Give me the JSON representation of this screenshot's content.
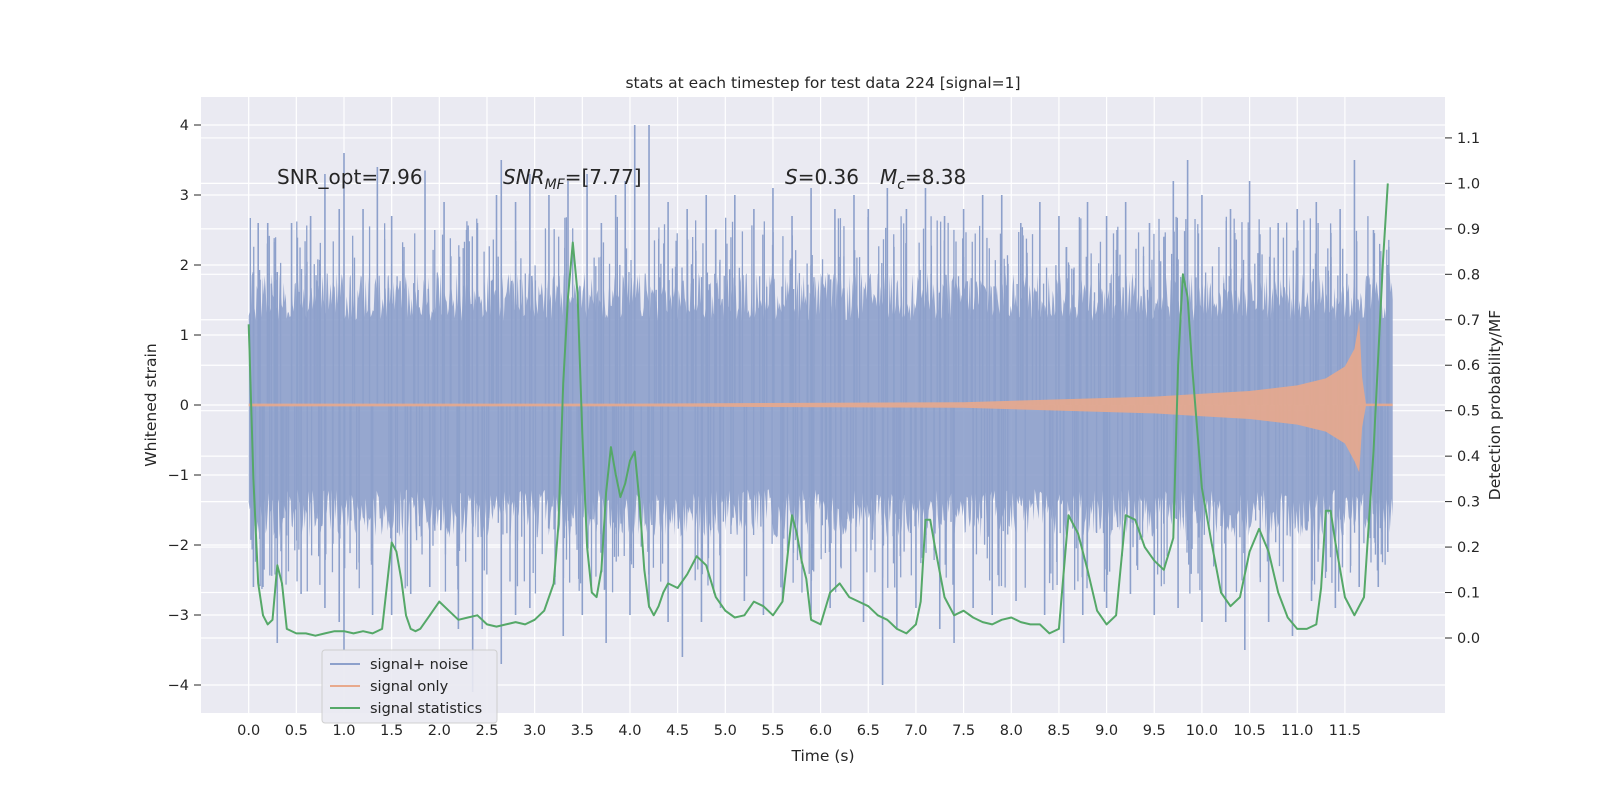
{
  "chart_data": {
    "type": "line",
    "title": "stats at each timestep for test data 224 [signal=1]",
    "xlabel": "Time (s)",
    "ylabel": "Whitened strain",
    "y2label": "Detection probability/MF",
    "xlim": [
      -0.5,
      12.55
    ],
    "ylim": [
      -4.4,
      4.4
    ],
    "y2lim": [
      -0.165,
      1.19
    ],
    "grid": true,
    "xticks": [
      "0.0",
      "0.5",
      "1.0",
      "1.5",
      "2.0",
      "2.5",
      "3.0",
      "3.5",
      "4.0",
      "4.5",
      "5.0",
      "5.5",
      "6.0",
      "6.5",
      "7.0",
      "7.5",
      "8.0",
      "8.5",
      "9.0",
      "9.5",
      "10.0",
      "10.5",
      "11.0",
      "11.5"
    ],
    "yticks": [
      "4",
      "3",
      "2",
      "1",
      "0",
      "−1",
      "−2",
      "−3",
      "−4"
    ],
    "y2ticks": [
      "1.1",
      "1.0",
      "0.9",
      "0.8",
      "0.7",
      "0.6",
      "0.5",
      "0.4",
      "0.3",
      "0.2",
      "0.1",
      "0.0"
    ],
    "annotations": {
      "snr_opt": "SNR_opt=7.96",
      "snr_mf_main": "SNR",
      "snr_mf_sub": "MF",
      "snr_mf_rest": "=[7.77]",
      "s_main": "S",
      "s_rest": "=0.36",
      "mc_main": "M",
      "mc_sub": "c",
      "mc_rest": "=8.38"
    },
    "legend": {
      "placement": "lower-left",
      "entries": [
        "signal+ noise",
        "signal only",
        "signal statistics"
      ]
    },
    "colors": {
      "noise": "#8da0cb",
      "signal": "#e8a98c",
      "stat": "#55a868",
      "background": "#eaeaf2",
      "grid": "#ffffff"
    },
    "series": [
      {
        "name": "signal+ noise",
        "description_range": [
          0.0,
          12.0
        ],
        "band_1sigma": 1.0,
        "peaks_up": [
          [
            0.05,
            1.9
          ],
          [
            0.1,
            2.6
          ],
          [
            0.2,
            2.6
          ],
          [
            0.3,
            1.9
          ],
          [
            0.45,
            2.6
          ],
          [
            0.65,
            2.7
          ],
          [
            0.8,
            3.3
          ],
          [
            0.95,
            2.8
          ],
          [
            1.0,
            3.6
          ],
          [
            1.2,
            2.8
          ],
          [
            1.35,
            3.4
          ],
          [
            1.5,
            2.7
          ],
          [
            1.85,
            3.35
          ],
          [
            2.05,
            2.9
          ],
          [
            2.4,
            2.6
          ],
          [
            2.6,
            3.0
          ],
          [
            2.65,
            3.5
          ],
          [
            2.8,
            2.9
          ],
          [
            2.95,
            3.3
          ],
          [
            3.15,
            3.0
          ],
          [
            3.35,
            3.2
          ],
          [
            3.55,
            3.3
          ],
          [
            3.7,
            2.6
          ],
          [
            3.85,
            3.0
          ],
          [
            3.95,
            3.2
          ],
          [
            4.05,
            4.0
          ],
          [
            4.2,
            4.0
          ],
          [
            4.4,
            2.9
          ],
          [
            4.6,
            2.8
          ],
          [
            4.8,
            3.0
          ],
          [
            5.1,
            3.0
          ],
          [
            5.3,
            2.8
          ],
          [
            5.5,
            3.1
          ],
          [
            5.7,
            2.7
          ],
          [
            5.9,
            3.1
          ],
          [
            6.15,
            2.8
          ],
          [
            6.35,
            3.0
          ],
          [
            6.5,
            2.8
          ],
          [
            6.7,
            3.1
          ],
          [
            6.9,
            2.8
          ],
          [
            7.1,
            3.1
          ],
          [
            7.3,
            2.7
          ],
          [
            7.5,
            2.8
          ],
          [
            7.7,
            3.0
          ],
          [
            7.9,
            3.0
          ],
          [
            8.1,
            2.6
          ],
          [
            8.3,
            2.9
          ],
          [
            8.5,
            2.7
          ],
          [
            8.8,
            2.9
          ],
          [
            9.0,
            2.7
          ],
          [
            9.2,
            2.9
          ],
          [
            9.45,
            2.6
          ],
          [
            9.7,
            3.2
          ],
          [
            9.85,
            3.5
          ],
          [
            10.0,
            3.0
          ],
          [
            10.3,
            2.8
          ],
          [
            10.5,
            3.2
          ],
          [
            10.8,
            2.6
          ],
          [
            11.0,
            2.8
          ],
          [
            11.2,
            2.9
          ],
          [
            11.45,
            2.8
          ],
          [
            11.6,
            3.5
          ],
          [
            11.8,
            2.5
          ],
          [
            11.95,
            2.0
          ]
        ],
        "peaks_down": [
          [
            0.05,
            -2.6
          ],
          [
            0.15,
            -2.6
          ],
          [
            0.3,
            -3.4
          ],
          [
            0.55,
            -2.7
          ],
          [
            0.8,
            -2.9
          ],
          [
            0.95,
            -3.1
          ],
          [
            1.0,
            -3.5
          ],
          [
            1.3,
            -3.0
          ],
          [
            1.5,
            -3.0
          ],
          [
            1.7,
            -2.7
          ],
          [
            1.9,
            -2.6
          ],
          [
            2.2,
            -3.2
          ],
          [
            2.35,
            -4.1
          ],
          [
            2.45,
            -3.2
          ],
          [
            2.65,
            -3.7
          ],
          [
            2.8,
            -3.0
          ],
          [
            2.95,
            -2.9
          ],
          [
            3.3,
            -3.3
          ],
          [
            3.5,
            -3.0
          ],
          [
            3.75,
            -3.4
          ],
          [
            4.0,
            -3.0
          ],
          [
            4.2,
            -2.9
          ],
          [
            4.4,
            -3.1
          ],
          [
            4.55,
            -3.6
          ],
          [
            4.75,
            -3.1
          ],
          [
            4.95,
            -2.9
          ],
          [
            5.2,
            -2.8
          ],
          [
            5.4,
            -3.0
          ],
          [
            5.6,
            -2.8
          ],
          [
            5.9,
            -3.0
          ],
          [
            6.1,
            -2.9
          ],
          [
            6.45,
            -3.1
          ],
          [
            6.65,
            -4.0
          ],
          [
            6.8,
            -3.2
          ],
          [
            7.0,
            -2.9
          ],
          [
            7.25,
            -3.2
          ],
          [
            7.4,
            -3.4
          ],
          [
            7.6,
            -2.9
          ],
          [
            7.8,
            -3.0
          ],
          [
            8.05,
            -2.8
          ],
          [
            8.35,
            -3.0
          ],
          [
            8.55,
            -3.4
          ],
          [
            8.75,
            -3.0
          ],
          [
            9.0,
            -2.9
          ],
          [
            9.25,
            -2.7
          ],
          [
            9.5,
            -3.0
          ],
          [
            9.75,
            -2.9
          ],
          [
            10.0,
            -3.1
          ],
          [
            10.25,
            -3.1
          ],
          [
            10.45,
            -3.5
          ],
          [
            10.7,
            -3.1
          ],
          [
            10.95,
            -3.3
          ],
          [
            11.15,
            -2.8
          ],
          [
            11.4,
            -2.9
          ],
          [
            11.65,
            -2.6
          ],
          [
            11.85,
            -2.6
          ],
          [
            11.95,
            -2.1
          ]
        ]
      },
      {
        "name": "signal only",
        "chirp_points": [
          [
            0.0,
            0.02
          ],
          [
            4.0,
            0.02
          ],
          [
            7.5,
            0.04
          ],
          [
            8.5,
            0.08
          ],
          [
            9.5,
            0.12
          ],
          [
            10.0,
            0.16
          ],
          [
            10.5,
            0.2
          ],
          [
            11.0,
            0.28
          ],
          [
            11.3,
            0.38
          ],
          [
            11.5,
            0.55
          ],
          [
            11.6,
            0.8
          ],
          [
            11.65,
            1.2
          ],
          [
            11.68,
            0.4
          ],
          [
            11.72,
            0.02
          ],
          [
            12.0,
            0.02
          ]
        ]
      },
      {
        "name": "signal statistics",
        "x": [
          0.0,
          0.05,
          0.1,
          0.15,
          0.2,
          0.25,
          0.3,
          0.35,
          0.4,
          0.5,
          0.6,
          0.7,
          0.8,
          0.9,
          1.0,
          1.1,
          1.2,
          1.3,
          1.4,
          1.5,
          1.55,
          1.6,
          1.65,
          1.7,
          1.75,
          1.8,
          1.9,
          2.0,
          2.1,
          2.2,
          2.3,
          2.4,
          2.5,
          2.6,
          2.7,
          2.8,
          2.9,
          3.0,
          3.1,
          3.2,
          3.25,
          3.3,
          3.35,
          3.4,
          3.45,
          3.5,
          3.55,
          3.6,
          3.65,
          3.7,
          3.75,
          3.8,
          3.85,
          3.9,
          3.95,
          4.0,
          4.05,
          4.1,
          4.15,
          4.2,
          4.25,
          4.3,
          4.35,
          4.4,
          4.5,
          4.6,
          4.7,
          4.8,
          4.9,
          5.0,
          5.1,
          5.2,
          5.3,
          5.4,
          5.5,
          5.6,
          5.7,
          5.75,
          5.8,
          5.85,
          5.9,
          6.0,
          6.1,
          6.2,
          6.3,
          6.4,
          6.5,
          6.6,
          6.7,
          6.8,
          6.9,
          7.0,
          7.05,
          7.1,
          7.15,
          7.2,
          7.3,
          7.4,
          7.5,
          7.6,
          7.7,
          7.8,
          7.9,
          8.0,
          8.1,
          8.2,
          8.3,
          8.4,
          8.5,
          8.6,
          8.7,
          8.8,
          8.9,
          9.0,
          9.1,
          9.2,
          9.3,
          9.4,
          9.5,
          9.6,
          9.7,
          9.75,
          9.8,
          9.85,
          9.9,
          10.0,
          10.1,
          10.2,
          10.3,
          10.4,
          10.5,
          10.6,
          10.7,
          10.8,
          10.9,
          11.0,
          11.1,
          11.2,
          11.25,
          11.3,
          11.35,
          11.4,
          11.5,
          11.6,
          11.7,
          11.8,
          11.9,
          11.95
        ],
        "values": [
          0.69,
          0.35,
          0.12,
          0.05,
          0.03,
          0.04,
          0.16,
          0.12,
          0.02,
          0.01,
          0.01,
          0.005,
          0.01,
          0.015,
          0.015,
          0.01,
          0.015,
          0.01,
          0.02,
          0.21,
          0.19,
          0.13,
          0.05,
          0.02,
          0.015,
          0.02,
          0.05,
          0.08,
          0.06,
          0.04,
          0.045,
          0.05,
          0.03,
          0.025,
          0.03,
          0.035,
          0.03,
          0.04,
          0.06,
          0.12,
          0.25,
          0.56,
          0.75,
          0.87,
          0.76,
          0.45,
          0.2,
          0.1,
          0.09,
          0.15,
          0.32,
          0.42,
          0.36,
          0.31,
          0.34,
          0.39,
          0.41,
          0.3,
          0.15,
          0.07,
          0.05,
          0.07,
          0.1,
          0.12,
          0.11,
          0.14,
          0.18,
          0.16,
          0.09,
          0.06,
          0.045,
          0.05,
          0.08,
          0.07,
          0.05,
          0.08,
          0.27,
          0.23,
          0.17,
          0.13,
          0.04,
          0.03,
          0.1,
          0.12,
          0.09,
          0.08,
          0.07,
          0.05,
          0.04,
          0.02,
          0.01,
          0.03,
          0.08,
          0.26,
          0.26,
          0.2,
          0.09,
          0.05,
          0.06,
          0.045,
          0.035,
          0.03,
          0.04,
          0.045,
          0.035,
          0.03,
          0.03,
          0.01,
          0.02,
          0.27,
          0.23,
          0.15,
          0.06,
          0.03,
          0.05,
          0.27,
          0.26,
          0.2,
          0.17,
          0.15,
          0.22,
          0.6,
          0.8,
          0.75,
          0.59,
          0.33,
          0.21,
          0.1,
          0.07,
          0.09,
          0.19,
          0.24,
          0.19,
          0.1,
          0.045,
          0.02,
          0.02,
          0.03,
          0.11,
          0.28,
          0.28,
          0.21,
          0.09,
          0.05,
          0.09,
          0.41,
          0.83,
          1.0
        ]
      }
    ]
  }
}
